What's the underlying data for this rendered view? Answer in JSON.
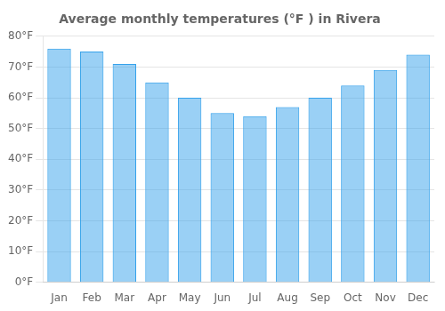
{
  "chart_data": {
    "type": "bar",
    "title": "Average monthly temperatures (°F ) in Rivera",
    "categories": [
      "Jan",
      "Feb",
      "Mar",
      "Apr",
      "May",
      "Jun",
      "Jul",
      "Aug",
      "Sep",
      "Oct",
      "Nov",
      "Dec"
    ],
    "values": [
      76,
      75,
      71,
      65,
      60,
      55,
      54,
      57,
      60,
      64,
      69,
      74
    ],
    "ylim": [
      0,
      80
    ],
    "yticks": [
      {
        "value": 0,
        "label": "0°F"
      },
      {
        "value": 10,
        "label": "10°F"
      },
      {
        "value": 20,
        "label": "20°F"
      },
      {
        "value": 30,
        "label": "30°F"
      },
      {
        "value": 40,
        "label": "40°F"
      },
      {
        "value": 50,
        "label": "50°F"
      },
      {
        "value": 60,
        "label": "60°F"
      },
      {
        "value": 70,
        "label": "70°F"
      },
      {
        "value": 80,
        "label": "80°F"
      }
    ],
    "grid": true
  }
}
